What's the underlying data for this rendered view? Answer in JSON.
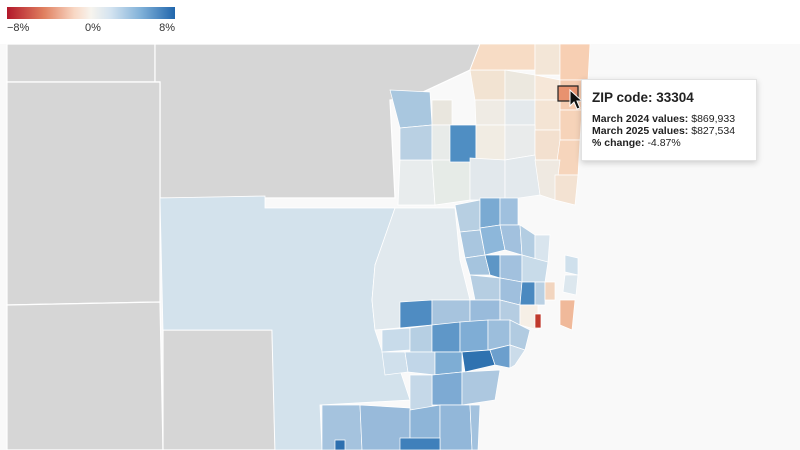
{
  "legend": {
    "min_label": "−8%",
    "mid_label": "0%",
    "max_label": "8%",
    "colors": {
      "negative": "#b2182b",
      "neutral": "#f7f4ee",
      "positive": "#2166ac"
    }
  },
  "map": {
    "background_county_color": "#d6d6d6",
    "water_color": "#ffffff"
  },
  "tooltip": {
    "title_prefix": "ZIP code: ",
    "zip": "33304",
    "rows": [
      {
        "label": "March 2024 values:",
        "value": "$869,933"
      },
      {
        "label": "March 2025 values:",
        "value": "$827,534"
      },
      {
        "label": "% change:",
        "value": "-4.87%"
      }
    ]
  },
  "selected_region": {
    "zip": "33304",
    "change_pct": -4.87
  }
}
